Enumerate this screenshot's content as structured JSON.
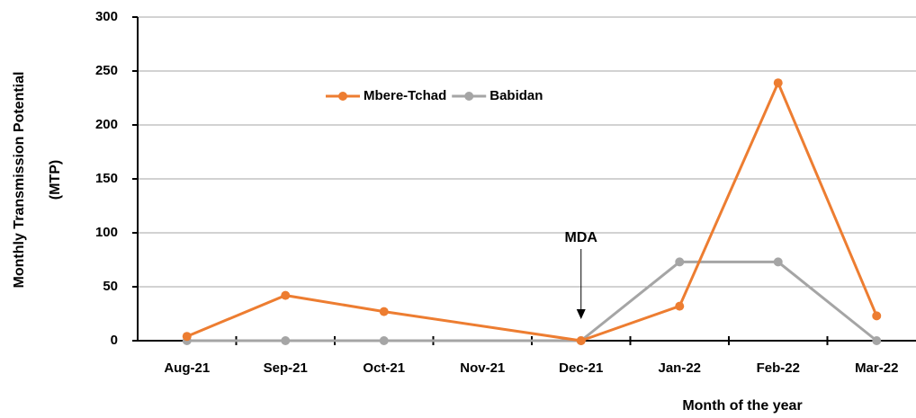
{
  "chart_data": {
    "type": "line",
    "xlabel": "Month of the year",
    "ylabel": [
      "Monthly Transmission Potential",
      "(MTP)"
    ],
    "categories": [
      "Aug-21",
      "Sep-21",
      "Oct-21",
      "Nov-21",
      "Dec-21",
      "Jan-22",
      "Feb-22",
      "Mar-22"
    ],
    "series": [
      {
        "name": "Mbere-Tchad",
        "color": "#ed7d31",
        "values": [
          4,
          42,
          27,
          null,
          0,
          32,
          239,
          23
        ]
      },
      {
        "name": "Babidan",
        "color": "#a5a5a5",
        "values": [
          0,
          0,
          0,
          null,
          0,
          73,
          73,
          0
        ]
      }
    ],
    "ylim": [
      0,
      300
    ],
    "yticks": [
      0,
      50,
      100,
      150,
      200,
      250,
      300
    ],
    "grid": true,
    "annotation": {
      "text": "MDA",
      "category": "Dec-21"
    }
  }
}
